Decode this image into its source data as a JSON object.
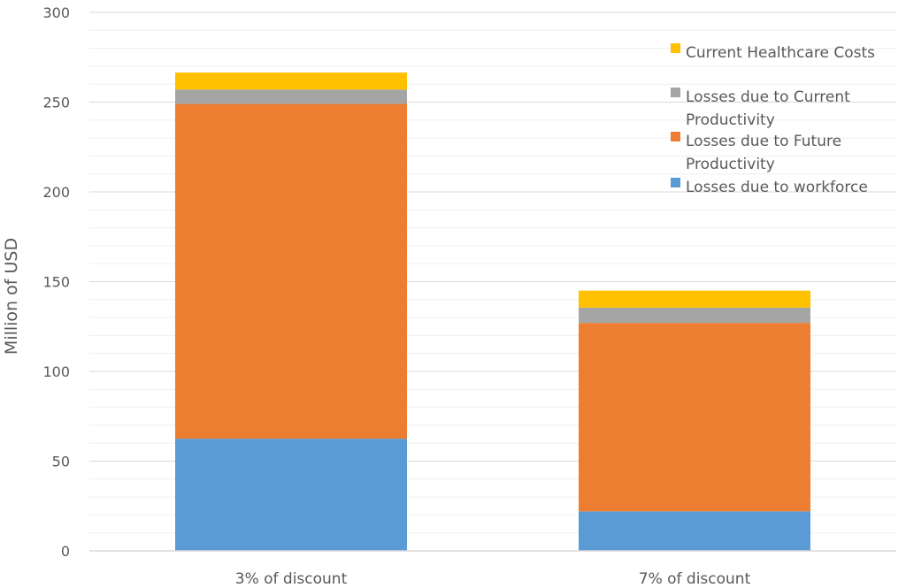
{
  "chart_data": {
    "type": "bar",
    "stacked": true,
    "title": "",
    "xlabel": "",
    "ylabel": "Million of USD",
    "ylim": [
      0,
      300
    ],
    "yticks": [
      0,
      50,
      100,
      150,
      200,
      250,
      300
    ],
    "minor_gridlines_step": 10,
    "grid": true,
    "legend_position": "top-right",
    "categories": [
      "3% of discount",
      "7% of discount"
    ],
    "series": [
      {
        "name": "Losses due to workforce",
        "color": "#5B9BD5",
        "values": [
          62.5,
          22
        ]
      },
      {
        "name": "Losses due to Future Productivity",
        "color": "#ED7D31",
        "values": [
          186.5,
          105
        ]
      },
      {
        "name": "Losses due to Current Productivity",
        "color": "#A5A5A5",
        "values": [
          8,
          8.5
        ]
      },
      {
        "name": "Current Healthcare Costs",
        "color": "#FFC000",
        "values": [
          9.5,
          9.5
        ]
      }
    ],
    "legend_order": [
      3,
      2,
      1,
      0
    ]
  }
}
